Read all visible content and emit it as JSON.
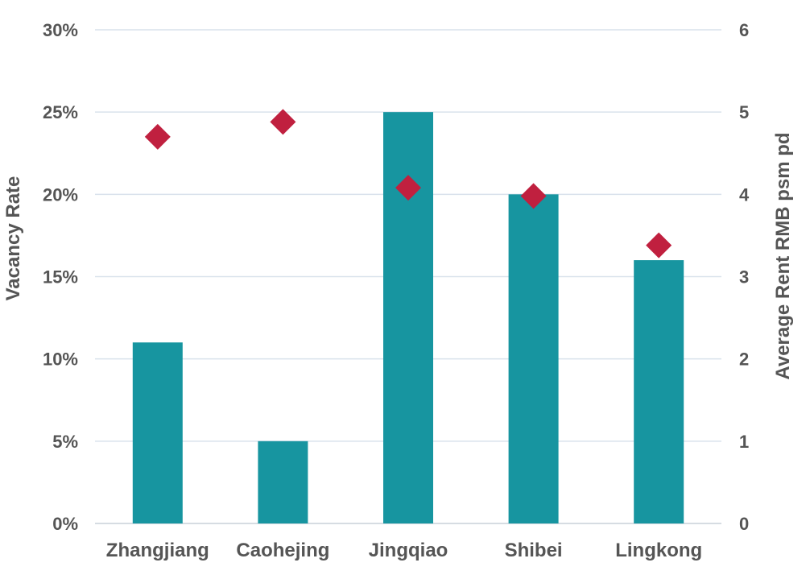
{
  "chart_data": {
    "type": "bar",
    "categories": [
      "Zhangjiang",
      "Caohejing",
      "Jingqiao",
      "Shibei",
      "Lingkong"
    ],
    "series": [
      {
        "name": "Vacancy Rate",
        "type": "bar",
        "axis": "left",
        "values": [
          11,
          5,
          25,
          20,
          16
        ]
      },
      {
        "name": "Average Rent RMB psm pd",
        "type": "scatter",
        "marker": "diamond",
        "axis": "right",
        "values": [
          4.7,
          4.88,
          4.08,
          3.98,
          3.38
        ]
      }
    ],
    "ylabel": "Vacancy Rate",
    "y2label": "Average Rent RMB psm pd",
    "ylim": [
      0,
      30
    ],
    "y2lim": [
      0,
      6
    ],
    "yticks": [
      "0%",
      "5%",
      "10%",
      "15%",
      "20%",
      "25%",
      "30%"
    ],
    "y2ticks": [
      "0",
      "1",
      "2",
      "3",
      "4",
      "5",
      "6"
    ],
    "grid": true,
    "colors": {
      "bar": "#1795a0",
      "marker": "#c0203f",
      "text": "#555555",
      "grid": "#d9e2ec"
    }
  }
}
